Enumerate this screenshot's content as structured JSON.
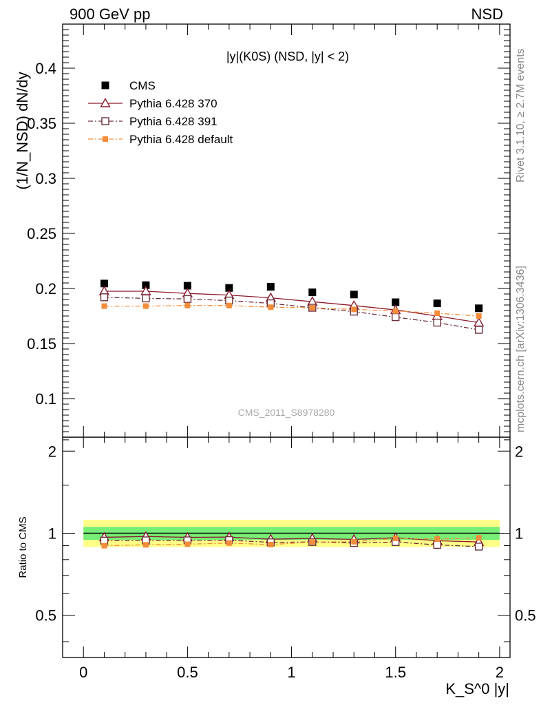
{
  "header": {
    "left": "900 GeV pp",
    "right": "NSD",
    "side_top": "Rivet 3.1.10, ≥ 2.7M events",
    "side_bottom": "mcplots.cern.ch [arXiv:1306.3436]",
    "watermark": "CMS_2011_S8978280"
  },
  "chart_data": {
    "type": "scatter",
    "title": "|y|(K0S) (NSD, |y| < 2)",
    "xlabel": "K_S^0 |y|",
    "ylabel": "(1/N_NSD) dN/dy",
    "ratio_ylabel": "Ratio to CMS",
    "xlim": [
      -0.1,
      2.05
    ],
    "ylim": [
      0.065,
      0.44
    ],
    "ratio_ylim": [
      0.35,
      2.25
    ],
    "log_ratio": true,
    "x_ticks": [
      "0",
      "0.5",
      "1",
      "1.5",
      "2"
    ],
    "y_ticks": [
      "0.1",
      "0.15",
      "0.2",
      "0.25",
      "0.3",
      "0.35",
      "0.4"
    ],
    "ratio_ticks": [
      "0.5",
      "1",
      "2"
    ],
    "legend_position": "top-left",
    "x": [
      0.1,
      0.3,
      0.5,
      0.7,
      0.9,
      1.1,
      1.3,
      1.5,
      1.7,
      1.9
    ],
    "series": [
      {
        "name": "CMS",
        "style": "data",
        "color": "#000000",
        "values": [
          0.2045,
          0.203,
          0.2025,
          0.2005,
          0.2015,
          0.1965,
          0.1945,
          0.1875,
          0.1865,
          0.182
        ]
      },
      {
        "name": "Pythia 6.428 370",
        "style": "triangle",
        "color": "#8b1a2b",
        "values": [
          0.1975,
          0.1975,
          0.1955,
          0.194,
          0.1915,
          0.188,
          0.1845,
          0.1805,
          0.175,
          0.169
        ]
      },
      {
        "name": "Pythia 6.428 391",
        "style": "square-open",
        "color": "#6b2f3a",
        "values": [
          0.192,
          0.191,
          0.1905,
          0.189,
          0.1865,
          0.1825,
          0.179,
          0.174,
          0.169,
          0.1625
        ]
      },
      {
        "name": "Pythia 6.428 default",
        "style": "square-filled",
        "color": "#f28c3a",
        "values": [
          0.184,
          0.184,
          0.1845,
          0.1845,
          0.183,
          0.1825,
          0.181,
          0.1795,
          0.1775,
          0.175
        ]
      }
    ],
    "bands": [
      {
        "name": "yellow",
        "color": "#ffff88",
        "lo": 0.89,
        "hi": 1.12
      },
      {
        "name": "green",
        "color": "#77ee77",
        "lo": 0.945,
        "hi": 1.055
      }
    ]
  }
}
